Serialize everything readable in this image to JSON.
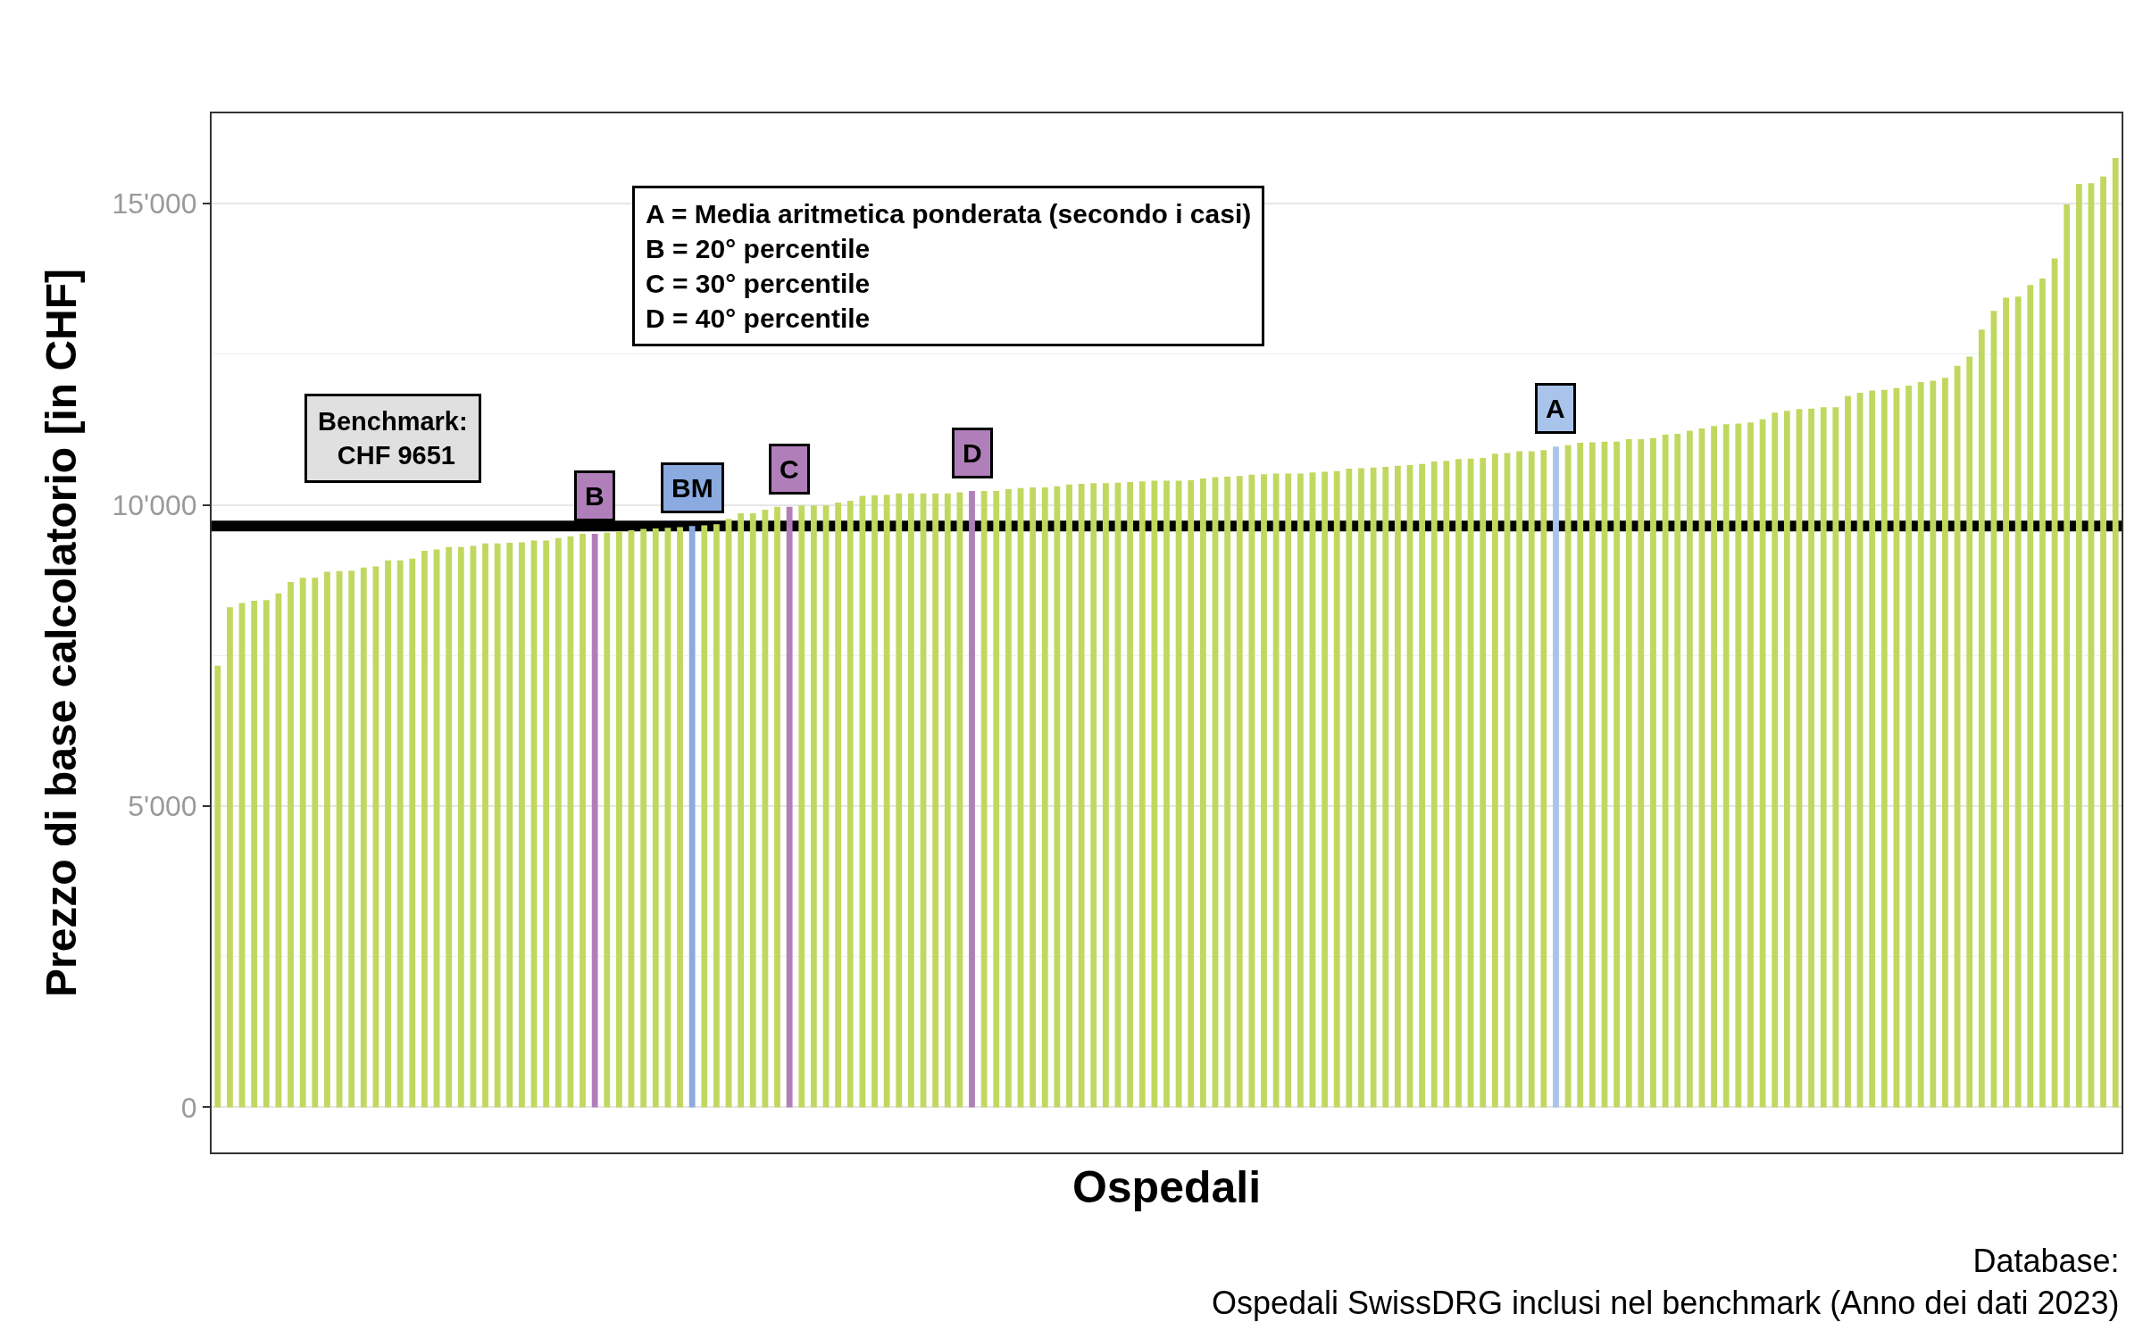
{
  "chart_data": {
    "type": "bar",
    "xlabel": "Ospedali",
    "ylabel": "Prezzo di base calcolatorio [in CHF]",
    "categories": [
      null,
      null,
      null,
      null,
      null,
      null,
      null,
      null,
      null,
      null,
      null,
      null,
      null,
      null,
      null,
      null,
      null,
      null,
      null,
      null,
      null,
      null,
      null,
      null,
      null,
      null,
      null,
      null,
      null,
      null,
      null,
      null,
      null,
      null,
      null,
      null,
      null,
      null,
      null,
      null,
      null,
      null,
      null,
      null,
      null,
      null,
      null,
      null,
      null,
      null,
      null,
      null,
      null,
      null,
      null,
      null,
      null,
      null,
      null,
      null,
      null,
      null,
      null,
      null,
      null,
      null,
      null,
      null,
      null,
      null,
      null,
      null,
      null,
      null,
      null,
      null,
      null,
      null,
      null,
      null,
      null,
      null,
      null,
      null,
      null,
      null,
      null,
      null,
      null,
      null,
      null,
      null,
      null,
      null,
      null,
      null,
      null,
      null,
      null,
      null,
      null,
      null,
      null,
      null,
      null,
      null,
      null,
      null,
      null,
      null,
      null,
      null,
      null,
      null,
      null,
      null,
      null,
      null,
      null,
      null,
      null,
      null,
      null,
      null,
      null,
      null,
      null,
      null,
      null,
      null,
      null,
      null,
      null,
      null,
      null,
      null,
      null,
      null,
      null,
      null,
      null,
      null,
      null,
      null,
      null,
      null,
      null,
      null,
      null,
      null,
      null,
      null,
      null,
      null,
      null,
      null,
      null
    ],
    "values": [
      7330,
      8300,
      8370,
      8410,
      8420,
      8530,
      8720,
      8790,
      8790,
      8890,
      8900,
      8910,
      8960,
      8980,
      9080,
      9080,
      9110,
      9240,
      9260,
      9300,
      9300,
      9320,
      9360,
      9360,
      9370,
      9380,
      9410,
      9410,
      9450,
      9480,
      9520,
      9520,
      9540,
      9560,
      9580,
      9600,
      9610,
      9620,
      9630,
      9650,
      9660,
      9680,
      9770,
      9860,
      9860,
      9920,
      9970,
      9970,
      9990,
      9990,
      9990,
      10040,
      10070,
      10150,
      10160,
      10170,
      10190,
      10190,
      10190,
      10190,
      10190,
      10210,
      10230,
      10230,
      10230,
      10260,
      10280,
      10290,
      10290,
      10310,
      10340,
      10350,
      10360,
      10360,
      10370,
      10380,
      10390,
      10400,
      10400,
      10400,
      10410,
      10440,
      10460,
      10470,
      10480,
      10500,
      10510,
      10520,
      10520,
      10520,
      10540,
      10550,
      10560,
      10600,
      10610,
      10620,
      10630,
      10650,
      10660,
      10680,
      10720,
      10730,
      10760,
      10770,
      10780,
      10850,
      10860,
      10890,
      10890,
      10910,
      10970,
      10990,
      11030,
      11040,
      11050,
      11050,
      11090,
      11090,
      11110,
      11170,
      11180,
      11230,
      11270,
      11310,
      11340,
      11350,
      11370,
      11420,
      11530,
      11560,
      11590,
      11600,
      11620,
      11620,
      11810,
      11860,
      11900,
      11910,
      11940,
      11980,
      12040,
      12060,
      12110,
      12310,
      12460,
      12910,
      13220,
      13440,
      13460,
      13650,
      13760,
      14090,
      14990,
      15330,
      15340,
      15450,
      15760
    ],
    "colors": [
      "#c1d860",
      "#c1d860",
      "#c1d860",
      "#c1d860",
      "#c1d860",
      "#c1d860",
      "#c1d860",
      "#c1d860",
      "#c1d860",
      "#c1d860",
      "#c1d860",
      "#c1d860",
      "#c1d860",
      "#c1d860",
      "#c1d860",
      "#c1d860",
      "#c1d860",
      "#c1d860",
      "#c1d860",
      "#c1d860",
      "#c1d860",
      "#c1d860",
      "#c1d860",
      "#c1d860",
      "#c1d860",
      "#c1d860",
      "#c1d860",
      "#c1d860",
      "#c1d860",
      "#c1d860",
      "#c1d860",
      "#b07fb9",
      "#c1d860",
      "#c1d860",
      "#c1d860",
      "#c1d860",
      "#c1d860",
      "#c1d860",
      "#c1d860",
      "#8aaae0",
      "#c1d860",
      "#c1d860",
      "#c1d860",
      "#c1d860",
      "#c1d860",
      "#c1d860",
      "#c1d860",
      "#b07fb9",
      "#c1d860",
      "#c1d860",
      "#c1d860",
      "#c1d860",
      "#c1d860",
      "#c1d860",
      "#c1d860",
      "#c1d860",
      "#c1d860",
      "#c1d860",
      "#c1d860",
      "#c1d860",
      "#c1d860",
      "#c1d860",
      "#b07fb9",
      "#c1d860",
      "#c1d860",
      "#c1d860",
      "#c1d860",
      "#c1d860",
      "#c1d860",
      "#c1d860",
      "#c1d860",
      "#c1d860",
      "#c1d860",
      "#c1d860",
      "#c1d860",
      "#c1d860",
      "#c1d860",
      "#c1d860",
      "#c1d860",
      "#c1d860",
      "#c1d860",
      "#c1d860",
      "#c1d860",
      "#c1d860",
      "#c1d860",
      "#c1d860",
      "#c1d860",
      "#c1d860",
      "#c1d860",
      "#c1d860",
      "#c1d860",
      "#c1d860",
      "#c1d860",
      "#c1d860",
      "#c1d860",
      "#c1d860",
      "#c1d860",
      "#c1d860",
      "#c1d860",
      "#c1d860",
      "#c1d860",
      "#c1d860",
      "#c1d860",
      "#c1d860",
      "#c1d860",
      "#c1d860",
      "#c1d860",
      "#c1d860",
      "#c1d860",
      "#c1d860",
      "#a8c4ea",
      "#c1d860",
      "#c1d860",
      "#c1d860",
      "#c1d860",
      "#c1d860",
      "#c1d860",
      "#c1d860",
      "#c1d860",
      "#c1d860",
      "#c1d860",
      "#c1d860",
      "#c1d860",
      "#c1d860",
      "#c1d860",
      "#c1d860",
      "#c1d860",
      "#c1d860",
      "#c1d860",
      "#c1d860",
      "#c1d860",
      "#c1d860",
      "#c1d860",
      "#c1d860",
      "#c1d860",
      "#c1d860",
      "#c1d860",
      "#c1d860",
      "#c1d860",
      "#c1d860",
      "#c1d860",
      "#c1d860",
      "#c1d860",
      "#c1d860",
      "#c1d860",
      "#c1d860",
      "#c1d860",
      "#c1d860",
      "#c1d860",
      "#c1d860",
      "#c1d860",
      "#c1d860",
      "#c1d860",
      "#c1d860",
      "#c1d860",
      "#c1d860",
      "#c1d860"
    ],
    "value_labels": [
      null,
      null,
      null,
      null,
      null,
      null,
      null,
      null,
      null,
      null,
      null,
      null,
      null,
      null,
      null,
      null,
      null,
      null,
      null,
      null,
      null,
      null,
      null,
      null,
      null,
      null,
      null,
      null,
      null,
      null,
      null,
      "B",
      null,
      null,
      null,
      null,
      null,
      null,
      null,
      "BM",
      null,
      null,
      null,
      null,
      null,
      null,
      null,
      "C",
      null,
      null,
      null,
      null,
      null,
      null,
      null,
      null,
      null,
      null,
      null,
      null,
      null,
      null,
      "D",
      null,
      null,
      null,
      null,
      null,
      null,
      null,
      null,
      null,
      null,
      null,
      null,
      null,
      null,
      null,
      null,
      null,
      null,
      null,
      null,
      null,
      null,
      null,
      null,
      null,
      null,
      null,
      null,
      null,
      null,
      null,
      null,
      null,
      null,
      null,
      null,
      null,
      null,
      null,
      null,
      null,
      null,
      null,
      null,
      null,
      null,
      null,
      "A",
      null,
      null,
      null,
      null,
      null,
      null,
      null,
      null,
      null,
      null,
      null,
      null,
      null,
      null,
      null,
      null,
      null,
      null,
      null,
      null,
      null,
      null,
      null,
      null,
      null,
      null,
      null,
      null,
      null,
      null,
      null,
      null,
      null,
      null,
      null,
      null,
      null,
      null,
      null,
      null,
      null,
      null,
      null,
      null,
      null,
      null
    ],
    "ylim": [
      -750,
      16500
    ],
    "yticks": [
      0,
      {
        "value": 5000,
        "label": "5'000"
      },
      {
        "value": 10000,
        "label": "10'000"
      },
      {
        "value": 15000,
        "label": "15'000"
      }
    ],
    "grid": "y",
    "ref_lines": [
      {
        "axis": "y",
        "value": 9651,
        "label": "Benchmark:\nCHF 9651",
        "color": "#000000",
        "line_style": "solid"
      }
    ],
    "annotations": [
      "A = Media aritmetica ponderata (secondo i casi)\nB = 20° percentile\nC = 30° percentile\nD = 40° percentile",
      "Database:\nOspedali SwissDRG inclusi nel benchmark (Anno dei dati 2023)"
    ]
  }
}
